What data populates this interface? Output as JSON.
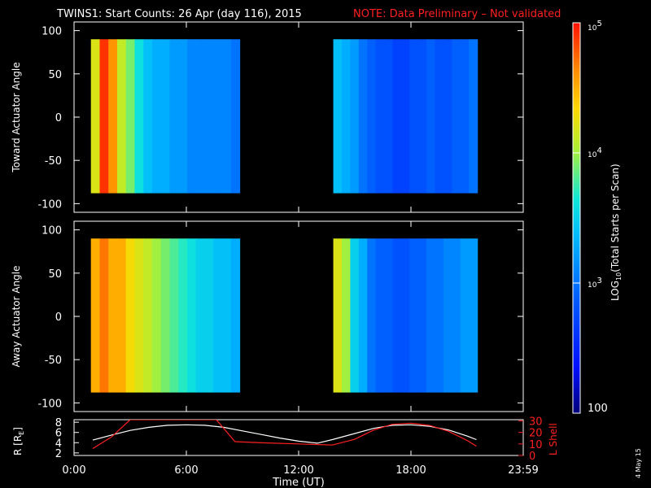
{
  "title": "TWINS1: Start Counts: 26 Apr (day 116), 2015",
  "note": "NOTE: Data Preliminary – Not validated",
  "footer_date": "4 May 15",
  "colors": {
    "background": "#000000",
    "axis": "#ffffff",
    "note": "#ff2020",
    "r_line": "#ffffff",
    "lshell_line": "#ff2020"
  },
  "chart_data": [
    {
      "type": "heatmap",
      "name": "toward",
      "ylabel": "Toward Actuator Angle",
      "ylim": [
        -110,
        110
      ],
      "yticks": [
        100,
        50,
        0,
        -50,
        -100
      ],
      "xlim": [
        0,
        24
      ],
      "data_blocks": [
        {
          "x_start": 0.9,
          "x_end": 8.85,
          "y_range": [
            -88,
            90
          ],
          "log_profile": [
            4.2,
            4.9,
            4.6,
            4.1,
            3.9,
            3.6,
            3.4,
            3.3,
            3.3,
            3.2,
            3.2,
            3.1,
            3.1,
            3.1,
            3.1,
            3.1,
            3.0
          ]
        },
        {
          "x_start": 13.85,
          "x_end": 21.55,
          "y_range": [
            -88,
            90
          ],
          "log_profile": [
            3.4,
            3.3,
            3.2,
            3.0,
            2.9,
            2.8,
            2.8,
            2.7,
            2.7,
            2.8,
            2.8,
            2.9,
            2.8,
            2.8,
            2.9,
            2.9,
            3.0
          ]
        }
      ]
    },
    {
      "type": "heatmap",
      "name": "away",
      "ylabel": "Away Actuator Angle",
      "ylim": [
        -110,
        110
      ],
      "yticks": [
        100,
        50,
        0,
        -50,
        -100
      ],
      "xlim": [
        0,
        24
      ],
      "data_blocks": [
        {
          "x_start": 0.9,
          "x_end": 8.85,
          "y_range": [
            -88,
            90
          ],
          "log_profile": [
            4.5,
            4.7,
            4.5,
            4.5,
            4.3,
            4.2,
            4.1,
            4.0,
            3.9,
            3.8,
            3.7,
            3.6,
            3.5,
            3.5,
            3.4,
            3.4,
            3.3
          ]
        },
        {
          "x_start": 13.85,
          "x_end": 21.55,
          "y_range": [
            -88,
            90
          ],
          "log_profile": [
            4.2,
            4.0,
            3.5,
            3.3,
            3.0,
            2.9,
            2.9,
            2.8,
            2.8,
            2.9,
            2.9,
            3.0,
            3.0,
            3.1,
            3.1,
            3.2,
            3.2
          ]
        }
      ]
    },
    {
      "type": "line",
      "name": "orbit",
      "xlabel": "Time (UT)",
      "xlim": [
        0,
        24
      ],
      "xticks": [
        0,
        6,
        12,
        18,
        24
      ],
      "xtick_labels": [
        "0:00",
        "6:00",
        "12:00",
        "18:00",
        "23:59"
      ],
      "ylabel_left": "R [R",
      "ylabel_left_sub": "E",
      "ylabel_left_close": "]",
      "ylim_left": [
        1.5,
        8.5
      ],
      "yticks_left": [
        2,
        4,
        6,
        8
      ],
      "ylabel_right": "L Shell",
      "ylim_right": [
        0,
        31
      ],
      "yticks_right": [
        0,
        10,
        20,
        30
      ],
      "series": [
        {
          "name": "R",
          "axis": "left",
          "x": [
            1,
            2,
            3,
            4,
            5,
            6,
            7,
            8,
            9,
            10,
            11,
            12,
            13,
            13.8,
            15,
            16,
            17,
            18,
            19,
            20,
            21,
            21.5
          ],
          "y": [
            4.5,
            5.5,
            6.4,
            7.0,
            7.4,
            7.5,
            7.4,
            7.0,
            6.3,
            5.6,
            4.9,
            4.3,
            3.9,
            4.6,
            5.8,
            6.8,
            7.4,
            7.5,
            7.2,
            6.5,
            5.3,
            4.6
          ]
        },
        {
          "name": "L Shell",
          "axis": "right",
          "x": [
            1,
            2,
            3.0,
            7.6,
            8.6,
            10,
            12,
            13.8,
            15,
            16,
            17,
            18,
            19,
            20,
            21,
            21.5
          ],
          "y": [
            6,
            16,
            31,
            31,
            12,
            11,
            10,
            9,
            14,
            22,
            27,
            28,
            26,
            21,
            13,
            8
          ]
        }
      ]
    }
  ],
  "colorbar": {
    "label_pre": "LOG",
    "label_sub": "10",
    "label_post": "(Total Starts per Scan)",
    "range_log": [
      2,
      5
    ],
    "ticks": [
      {
        "base": "10",
        "exp": "5",
        "value": 5
      },
      {
        "base": "10",
        "exp": "4",
        "value": 4
      },
      {
        "base": "10",
        "exp": "3",
        "value": 3
      },
      {
        "base": "100",
        "exp": "",
        "value": 2
      }
    ]
  }
}
